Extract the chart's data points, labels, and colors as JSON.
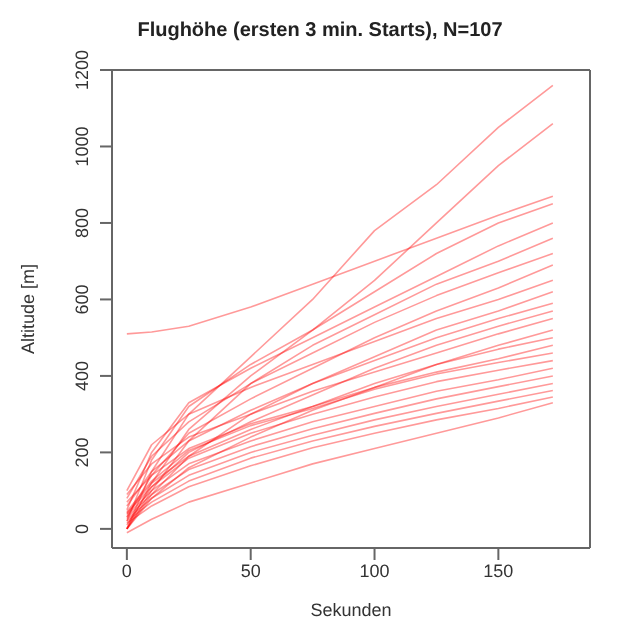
{
  "chart_data": {
    "type": "line",
    "title": "Flughöhe (ersten 3 min. Starts), N=107",
    "xlabel": "Sekunden",
    "ylabel": "Altitude [m]",
    "x": [
      0,
      10,
      25,
      50,
      75,
      100,
      125,
      150,
      172
    ],
    "xlim": [
      -6,
      187
    ],
    "xticks": [
      0,
      50,
      100,
      150
    ],
    "ylim": [
      -50,
      1200
    ],
    "yticks": [
      0,
      200,
      400,
      600,
      800,
      1000,
      1200
    ],
    "marker": "none",
    "line_style": "solid",
    "series": [
      {
        "color": "#ff0000",
        "values": [
          0,
          150,
          300,
          450,
          600,
          780,
          900,
          1050,
          1160
        ]
      },
      {
        "color": "#ff0000",
        "values": [
          0,
          120,
          260,
          400,
          520,
          650,
          800,
          950,
          1060
        ]
      },
      {
        "color": "#ff0000",
        "values": [
          510,
          515,
          530,
          580,
          640,
          700,
          760,
          820,
          870
        ]
      },
      {
        "color": "#ff0000",
        "values": [
          20,
          180,
          320,
          430,
          520,
          620,
          720,
          800,
          850
        ]
      },
      {
        "color": "#ff0000",
        "values": [
          50,
          200,
          330,
          420,
          500,
          580,
          660,
          740,
          800
        ]
      },
      {
        "color": "#ff0000",
        "values": [
          0,
          100,
          230,
          380,
          480,
          560,
          640,
          700,
          760
        ]
      },
      {
        "color": "#ff0000",
        "values": [
          80,
          190,
          280,
          380,
          460,
          540,
          610,
          670,
          720
        ]
      },
      {
        "color": "#ff0000",
        "values": [
          30,
          140,
          250,
          340,
          420,
          500,
          570,
          630,
          690
        ]
      },
      {
        "color": "#ff0000",
        "values": [
          100,
          220,
          300,
          370,
          430,
          490,
          550,
          600,
          650
        ]
      },
      {
        "color": "#ff0000",
        "values": [
          0,
          90,
          190,
          300,
          380,
          450,
          520,
          570,
          620
        ]
      },
      {
        "color": "#ff0000",
        "values": [
          60,
          150,
          230,
          310,
          380,
          440,
          500,
          550,
          590
        ]
      },
      {
        "color": "#ff0000",
        "values": [
          10,
          110,
          200,
          280,
          350,
          420,
          480,
          530,
          570
        ]
      },
      {
        "color": "#ff0000",
        "values": [
          90,
          170,
          240,
          300,
          360,
          410,
          460,
          510,
          550
        ]
      },
      {
        "color": "#ff0000",
        "values": [
          0,
          80,
          160,
          240,
          310,
          370,
          430,
          480,
          520
        ]
      },
      {
        "color": "#ff0000",
        "values": [
          40,
          120,
          190,
          260,
          320,
          380,
          430,
          470,
          500
        ]
      },
      {
        "color": "#ff0000",
        "values": [
          70,
          140,
          210,
          275,
          320,
          370,
          410,
          445,
          480
        ]
      },
      {
        "color": "#ff0000",
        "values": [
          45,
          125,
          205,
          270,
          315,
          365,
          405,
          435,
          460
        ]
      },
      {
        "color": "#ff0000",
        "values": [
          40,
          110,
          185,
          250,
          300,
          345,
          385,
          415,
          440
        ]
      },
      {
        "color": "#ff0000",
        "values": [
          35,
          100,
          170,
          230,
          280,
          320,
          360,
          390,
          420
        ]
      },
      {
        "color": "#ff0000",
        "values": [
          30,
          90,
          155,
          215,
          262,
          302,
          340,
          372,
          400
        ]
      },
      {
        "color": "#ff0000",
        "values": [
          25,
          80,
          140,
          200,
          245,
          285,
          320,
          352,
          380
        ]
      },
      {
        "color": "#ff0000",
        "values": [
          20,
          70,
          125,
          185,
          230,
          268,
          302,
          334,
          362
        ]
      },
      {
        "color": "#ff0000",
        "values": [
          15,
          60,
          110,
          165,
          212,
          250,
          285,
          315,
          345
        ]
      },
      {
        "color": "#ff0000",
        "values": [
          -10,
          25,
          70,
          120,
          170,
          210,
          250,
          290,
          330
        ]
      }
    ]
  }
}
